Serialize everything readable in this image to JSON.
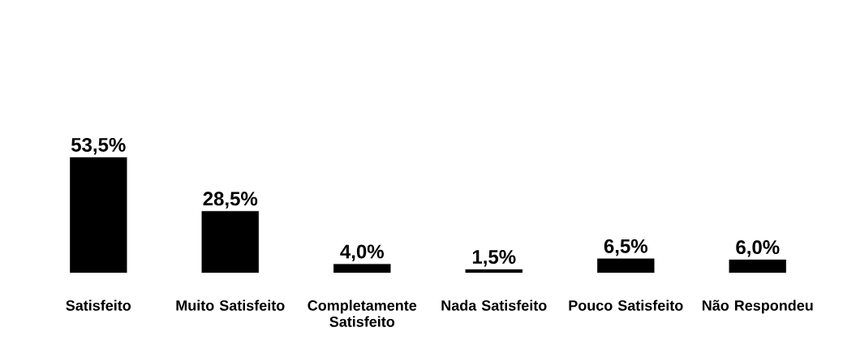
{
  "chart_data": {
    "type": "bar",
    "categories": [
      "Satisfeito",
      "Muito Satisfeito",
      "Completamente Satisfeito",
      "Nada Satisfeito",
      "Pouco Satisfeito",
      "Não Respondeu"
    ],
    "values": [
      53.5,
      28.5,
      4.0,
      1.5,
      6.5,
      6.0
    ],
    "value_labels": [
      "53,5%",
      "28,5%",
      "4,0%",
      "1,5%",
      "6,5%",
      "6,0%"
    ],
    "color": "#000000",
    "tick_labels": "x"
  }
}
